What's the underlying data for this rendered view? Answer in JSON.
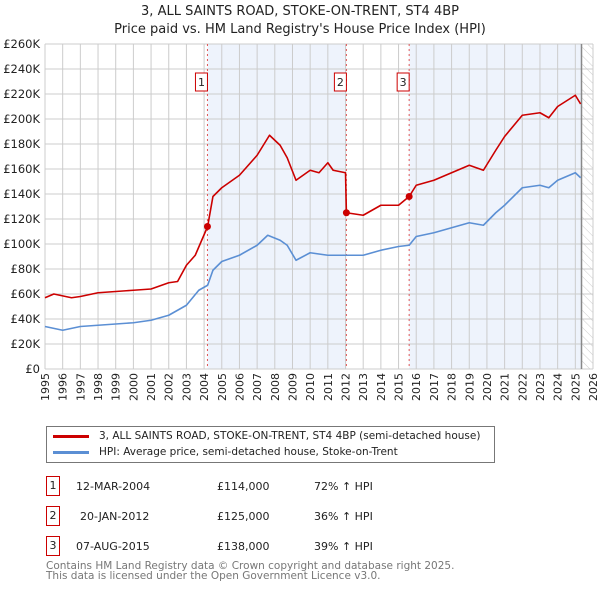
{
  "title": "3, ALL SAINTS ROAD, STOKE-ON-TRENT, ST4 4BP",
  "subtitle": "Price paid vs. HM Land Registry's House Price Index (HPI)",
  "chart_data": {
    "type": "line",
    "title": "3, ALL SAINTS ROAD, STOKE-ON-TRENT, ST4 4BP",
    "subtitle": "Price paid vs. HM Land Registry's House Price Index (HPI)",
    "xlim": [
      1995,
      2026
    ],
    "ylim": [
      0,
      260000
    ],
    "x_ticks": [
      "1995",
      "1996",
      "1997",
      "1998",
      "1999",
      "2000",
      "2001",
      "2002",
      "2003",
      "2004",
      "2005",
      "2006",
      "2007",
      "2008",
      "2009",
      "2010",
      "2011",
      "2012",
      "2013",
      "2014",
      "2015",
      "2016",
      "2017",
      "2018",
      "2019",
      "2020",
      "2021",
      "2022",
      "2023",
      "2024",
      "2025",
      "2026"
    ],
    "y_ticks": [
      "£0",
      "£20K",
      "£40K",
      "£60K",
      "£80K",
      "£100K",
      "£120K",
      "£140K",
      "£160K",
      "£180K",
      "£200K",
      "£220K",
      "£240K",
      "£260K"
    ],
    "grid": true,
    "series": [
      {
        "name": "3, ALL SAINTS ROAD, STOKE-ON-TRENT, ST4 4BP (semi-detached house)",
        "color": "#cc0000",
        "x": [
          1995,
          1995.5,
          1996.5,
          1997,
          1998,
          1999,
          2000,
          2001,
          2002,
          2002.5,
          2003,
          2003.5,
          2004.2,
          2004.5,
          2005,
          2006,
          2007,
          2007.7,
          2008.3,
          2008.7,
          2009.2,
          2010,
          2010.5,
          2011,
          2011.3,
          2012.0,
          2012.05,
          2013,
          2014,
          2015,
          2015.6,
          2016,
          2017,
          2018,
          2019,
          2019.8,
          2020.5,
          2021,
          2022,
          2023,
          2023.5,
          2024,
          2025,
          2025.3
        ],
        "y": [
          57000,
          60000,
          57000,
          58000,
          61000,
          62000,
          63000,
          64000,
          69000,
          70000,
          83000,
          91000,
          114000,
          138000,
          145000,
          155000,
          171000,
          187000,
          179000,
          169000,
          151000,
          159000,
          157000,
          165000,
          159000,
          157000,
          125000,
          123000,
          131000,
          131000,
          138000,
          147000,
          151000,
          157000,
          163000,
          159000,
          175000,
          186000,
          203000,
          205000,
          201000,
          210000,
          219000,
          212000
        ]
      },
      {
        "name": "HPI: Average price, semi-detached house, Stoke-on-Trent",
        "color": "#5b8fd4",
        "x": [
          1995,
          1996,
          1997,
          1998,
          1999,
          2000,
          2001,
          2002,
          2003,
          2003.7,
          2004.2,
          2004.5,
          2005,
          2006,
          2007,
          2007.6,
          2008.3,
          2008.7,
          2009.2,
          2010,
          2011,
          2012,
          2013,
          2014,
          2015,
          2015.6,
          2016,
          2017,
          2018,
          2019,
          2019.8,
          2020.5,
          2021,
          2022,
          2023,
          2023.5,
          2024,
          2025,
          2025.3
        ],
        "y": [
          34000,
          31000,
          34000,
          35000,
          36000,
          37000,
          39000,
          43000,
          51000,
          63000,
          67000,
          79000,
          86000,
          91000,
          99000,
          107000,
          103000,
          99000,
          87000,
          93000,
          91000,
          91000,
          91000,
          95000,
          98000,
          99000,
          106000,
          109000,
          113000,
          117000,
          115000,
          125000,
          131000,
          145000,
          147000,
          145000,
          151000,
          157000,
          153000
        ]
      }
    ],
    "sales": [
      {
        "label": "1",
        "x": 2004.19,
        "y": 114000
      },
      {
        "label": "2",
        "x": 2012.05,
        "y": 125000
      },
      {
        "label": "3",
        "x": 2015.6,
        "y": 138000
      }
    ],
    "legend_position": "bottom"
  },
  "legend": {
    "property": "3, ALL SAINTS ROAD, STOKE-ON-TRENT, ST4 4BP (semi-detached house)",
    "hpi": "HPI: Average price, semi-detached house, Stoke-on-Trent"
  },
  "transactions": [
    {
      "num": "1",
      "date": "12-MAR-2004",
      "price": "£114,000",
      "hpi": "72% ↑ HPI"
    },
    {
      "num": "2",
      "date": "20-JAN-2012",
      "price": "£125,000",
      "hpi": "36% ↑ HPI"
    },
    {
      "num": "3",
      "date": "07-AUG-2015",
      "price": "£138,000",
      "hpi": "39% ↑ HPI"
    }
  ],
  "footer": {
    "line1": "Contains HM Land Registry data © Crown copyright and database right 2025.",
    "line2": "This data is licensed under the Open Government Licence v3.0."
  }
}
